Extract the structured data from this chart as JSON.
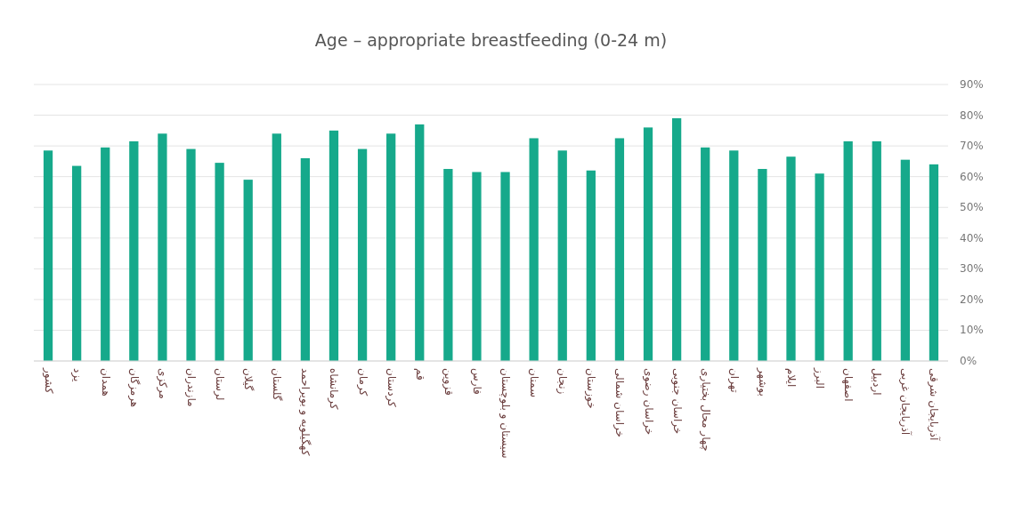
{
  "chart_data": {
    "type": "bar",
    "title": "Age – appropriate breastfeeding (0-24 m)",
    "categories": [
      "کشور",
      "یزد",
      "همدان",
      "هرمزگان",
      "مرکزی",
      "مازندران",
      "لرستان",
      "گیلان",
      "گلستان",
      "کهگیلویه و بویراحمد",
      "کرمانشاه",
      "کرمان",
      "کردستان",
      "قم",
      "قزوین",
      "فارس",
      "سیستان و بلوچستان",
      "سمنان",
      "زنجان",
      "خوزستان",
      "خراسان شمالی",
      "خراسان رضوی",
      "خراسان جنوبی",
      "چهار محال بختیاری",
      "تهران",
      "بوشهر",
      "ایلام",
      "البرز",
      "اصفهان",
      "اردبیل",
      "آذربایجان غربی",
      "آذربایجان شرقی"
    ],
    "values": [
      68.5,
      63.5,
      69.5,
      71.5,
      74,
      69,
      64.5,
      59,
      74,
      66,
      75,
      69,
      74,
      77,
      62.5,
      61.5,
      61.5,
      72.5,
      68.5,
      62,
      72.5,
      76,
      79,
      69.5,
      68.5,
      62.5,
      66.5,
      61,
      71.5,
      71.5,
      65.5,
      64
    ],
    "color": "#16a98b",
    "ylim": [
      0,
      90
    ],
    "yticks": [
      {
        "value": 0,
        "label": "0%"
      },
      {
        "value": 10,
        "label": "10%"
      },
      {
        "value": 20,
        "label": "20%"
      },
      {
        "value": 30,
        "label": "30%"
      },
      {
        "value": 40,
        "label": "40%"
      },
      {
        "value": 50,
        "label": "50%"
      },
      {
        "value": 60,
        "label": "60%"
      },
      {
        "value": 70,
        "label": "70%"
      },
      {
        "value": 80,
        "label": "80%"
      },
      {
        "value": 90,
        "label": "90%"
      }
    ],
    "grid": "y"
  }
}
